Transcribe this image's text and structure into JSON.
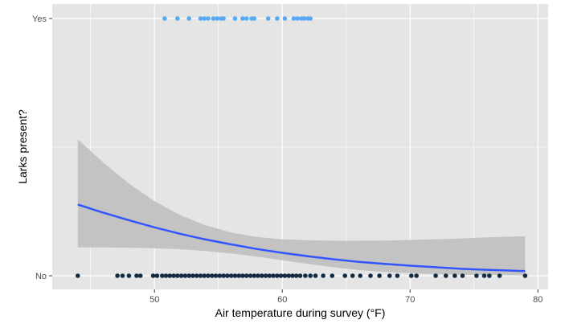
{
  "chart_data": {
    "type": "scatter",
    "xlabel": "Air temperature during survey (°F)",
    "ylabel": "Larks present?",
    "xlim": [
      42,
      80.8
    ],
    "ylim": [
      0,
      1
    ],
    "x_ticks": [
      50,
      60,
      70,
      80
    ],
    "y_ticks": [
      {
        "value": 0,
        "label": "No"
      },
      {
        "value": 1,
        "label": "Yes"
      }
    ],
    "grid": true,
    "legend": "none",
    "colors": {
      "panel": "#e5e5e5",
      "grid": "#ffffff",
      "points_yes": "#56a9f5",
      "points_no": "#132b43",
      "fit_line": "#3355ff",
      "ribbon": "#bdbdbd"
    },
    "series": [
      {
        "type": "scatter",
        "y": 1,
        "x": [
          50.8,
          51.8,
          52.7,
          53.6,
          53.9,
          54.2,
          54.6,
          54.9,
          55.2,
          55.4,
          56.3,
          56.9,
          57.2,
          57.6,
          57.8,
          58.9,
          59.6,
          60.2,
          60.9,
          61.2,
          61.5,
          61.7,
          62.0,
          62.2
        ]
      },
      {
        "type": "scatter",
        "y": 0,
        "x": [
          44.0,
          47.1,
          47.5,
          48.0,
          48.6,
          48.9,
          49.9,
          50.2,
          50.6,
          50.9,
          51.2,
          51.5,
          51.8,
          52.1,
          52.4,
          52.7,
          53.0,
          53.3,
          53.6,
          53.9,
          54.2,
          54.5,
          54.8,
          55.1,
          55.4,
          55.7,
          56.0,
          56.3,
          56.6,
          56.9,
          57.2,
          57.5,
          57.8,
          58.1,
          58.4,
          58.7,
          59.0,
          59.3,
          59.6,
          59.9,
          60.2,
          60.5,
          60.8,
          61.1,
          61.4,
          61.8,
          62.2,
          62.6,
          63.2,
          63.9,
          64.9,
          65.5,
          66.1,
          66.9,
          67.6,
          68.4,
          69.0,
          70.1,
          70.5,
          72.0,
          72.8,
          73.5,
          74.1,
          75.2,
          75.8,
          76.2,
          77.0,
          79.0
        ]
      }
    ],
    "fit": {
      "x": [
        44,
        46,
        48,
        50,
        52,
        54,
        56,
        58,
        60,
        62,
        64,
        66,
        68,
        70,
        72,
        74,
        76,
        79
      ],
      "y": [
        0.277,
        0.245,
        0.216,
        0.188,
        0.163,
        0.141,
        0.122,
        0.104,
        0.089,
        0.076,
        0.064,
        0.054,
        0.046,
        0.039,
        0.033,
        0.027,
        0.023,
        0.018
      ],
      "ci_low": [
        0.11,
        0.11,
        0.109,
        0.107,
        0.103,
        0.096,
        0.087,
        0.074,
        0.06,
        0.046,
        0.033,
        0.022,
        0.015,
        0.01,
        0.006,
        0.004,
        0.003,
        0.001
      ],
      "ci_high": [
        0.53,
        0.44,
        0.358,
        0.29,
        0.236,
        0.196,
        0.168,
        0.151,
        0.142,
        0.138,
        0.136,
        0.136,
        0.137,
        0.139,
        0.142,
        0.145,
        0.149,
        0.154
      ]
    }
  }
}
